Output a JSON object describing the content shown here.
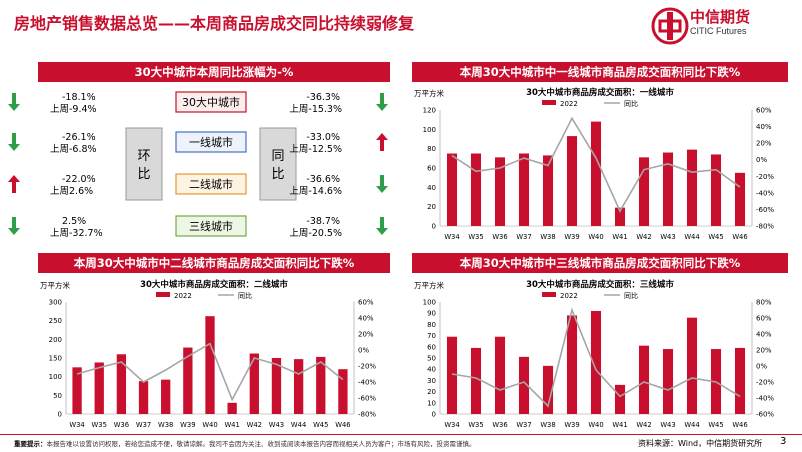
{
  "page": {
    "title": "房地产销售数据总览——本周商品房成交同比持续弱修复",
    "logo_cn": "中信期货",
    "logo_en": "CITIC Futures",
    "footer_label": "重要提示：",
    "footer_note": "本报告难以设置访问权限，若给您造成不便，敬请谅解。我司不会因为关注、收到或阅读本报告内容而视相关人员为客户；市场有风险，投资需谨慎。",
    "source": "资料来源：Wind，中信期货研究所",
    "page_number": "3"
  },
  "summary_panel": {
    "header": "30大中城市本周同比涨幅为-%",
    "hb_label": "环\n比",
    "tb_label": "同\n比",
    "rows": [
      {
        "city": "30大中城市",
        "left_week": "-18.1%",
        "left_prev": "上周-9.4%",
        "left_dir": "down",
        "right_week": "-36.3%",
        "right_prev": "上周-15.3%",
        "right_dir": "down"
      },
      {
        "city": "一线城市",
        "left_week": "-26.1%",
        "left_prev": "上周-6.8%",
        "left_dir": "down",
        "right_week": "-33.0%",
        "right_prev": "上周-12.5%",
        "right_dir": "up"
      },
      {
        "city": "二线城市",
        "left_week": "-22.0%",
        "left_prev": "上周2.6%",
        "left_dir": "up",
        "right_week": "-36.6%",
        "right_prev": "上周-14.6%",
        "right_dir": "down"
      },
      {
        "city": "三线城市",
        "left_week": "2.5%",
        "left_prev": "上周-32.7%",
        "left_dir": "down",
        "right_week": "-38.7%",
        "right_prev": "上周-20.5%",
        "right_dir": "down"
      }
    ]
  },
  "colors": {
    "accent": "#c8102e",
    "line": "#a6a6a6",
    "arrow_up": "#c8102e",
    "arrow_down": "#2e9e48",
    "box_blue_bg": "#eef2fb",
    "box_blue_border": "#4472c4",
    "box_orange_bg": "#fdf3e3",
    "box_orange_border": "#e39b2d",
    "box_green_bg": "#eef7e6",
    "box_green_border": "#70ad47",
    "box_red_bg": "#fdeeee",
    "box_red_border": "#c8102e",
    "grey_block": "#d9d9d9"
  },
  "chart_data": [
    {
      "id": "tier1",
      "type": "bar",
      "panel_header": "本周30大中城市中一线城市商品房成交面积同比下跌%",
      "title": "30大中城市商品房成交面积：一线城市",
      "ylabel_left": "万平方米",
      "categories": [
        "W34",
        "W35",
        "W36",
        "W37",
        "W38",
        "W39",
        "W40",
        "W41",
        "W42",
        "W43",
        "W44",
        "W45",
        "W46"
      ],
      "series": [
        {
          "name": "2022",
          "type": "bar",
          "axis": "left",
          "values": [
            75,
            75,
            71,
            75,
            73,
            93,
            108,
            19,
            71,
            76,
            79,
            74,
            55
          ]
        },
        {
          "name": "同比",
          "type": "line",
          "axis": "right",
          "values": [
            5,
            -14,
            -10,
            2,
            -7,
            50,
            2,
            -62,
            -12,
            -5,
            -15,
            -12,
            -33
          ]
        }
      ],
      "ylim_left": [
        0,
        120
      ],
      "yticks_left": [
        0,
        20,
        40,
        60,
        80,
        100,
        120
      ],
      "ylim_right": [
        -80,
        60
      ],
      "yticks_right": [
        "-80%",
        "-60%",
        "-40%",
        "-20%",
        "0%",
        "20%",
        "40%",
        "60%"
      ]
    },
    {
      "id": "tier2",
      "type": "bar",
      "panel_header": "本周30大中城市中二线城市商品房成交面积同比下跌%",
      "title": "30大中城市商品房成交面积：二线城市",
      "ylabel_left": "万平方米",
      "categories": [
        "W34",
        "W35",
        "W36",
        "W37",
        "W38",
        "W39",
        "W40",
        "W41",
        "W42",
        "W43",
        "W44",
        "W45",
        "W46"
      ],
      "series": [
        {
          "name": "2022",
          "type": "bar",
          "axis": "left",
          "values": [
            125,
            138,
            160,
            88,
            92,
            178,
            262,
            30,
            162,
            150,
            147,
            153,
            120
          ]
        },
        {
          "name": "同比",
          "type": "line",
          "axis": "right",
          "values": [
            -30,
            -22,
            -15,
            -40,
            -25,
            -8,
            8,
            -62,
            -10,
            -18,
            -30,
            -15,
            -37
          ]
        }
      ],
      "ylim_left": [
        0,
        300
      ],
      "yticks_left": [
        0,
        50,
        100,
        150,
        200,
        250,
        300
      ],
      "ylim_right": [
        -80,
        60
      ],
      "yticks_right": [
        "-80%",
        "-60%",
        "-40%",
        "-20%",
        "0%",
        "20%",
        "40%",
        "60%"
      ]
    },
    {
      "id": "tier3",
      "type": "bar",
      "panel_header": "本周30大中城市中三线城市商品房成交面积同比下跌%",
      "title": "30大中城市商品房成交面积：三线城市",
      "ylabel_left": "万平方米",
      "categories": [
        "W34",
        "W35",
        "W36",
        "W37",
        "W38",
        "W39",
        "W40",
        "W41",
        "W42",
        "W43",
        "W44",
        "W45",
        "W46"
      ],
      "series": [
        {
          "name": "2022",
          "type": "bar",
          "axis": "left",
          "values": [
            69,
            59,
            69,
            51,
            43,
            88,
            92,
            26,
            61,
            58,
            86,
            58,
            59
          ]
        },
        {
          "name": "同比",
          "type": "line",
          "axis": "right",
          "values": [
            -10,
            -15,
            -30,
            -20,
            -50,
            70,
            -5,
            -38,
            -20,
            -30,
            -15,
            -20,
            -38
          ]
        }
      ],
      "ylim_left": [
        0,
        100
      ],
      "yticks_left": [
        0,
        10,
        20,
        30,
        40,
        50,
        60,
        70,
        80,
        90,
        100
      ],
      "ylim_right": [
        -60,
        80
      ],
      "yticks_right": [
        "-60%",
        "-40%",
        "-20%",
        "0%",
        "20%",
        "40%",
        "60%",
        "80%"
      ]
    }
  ]
}
